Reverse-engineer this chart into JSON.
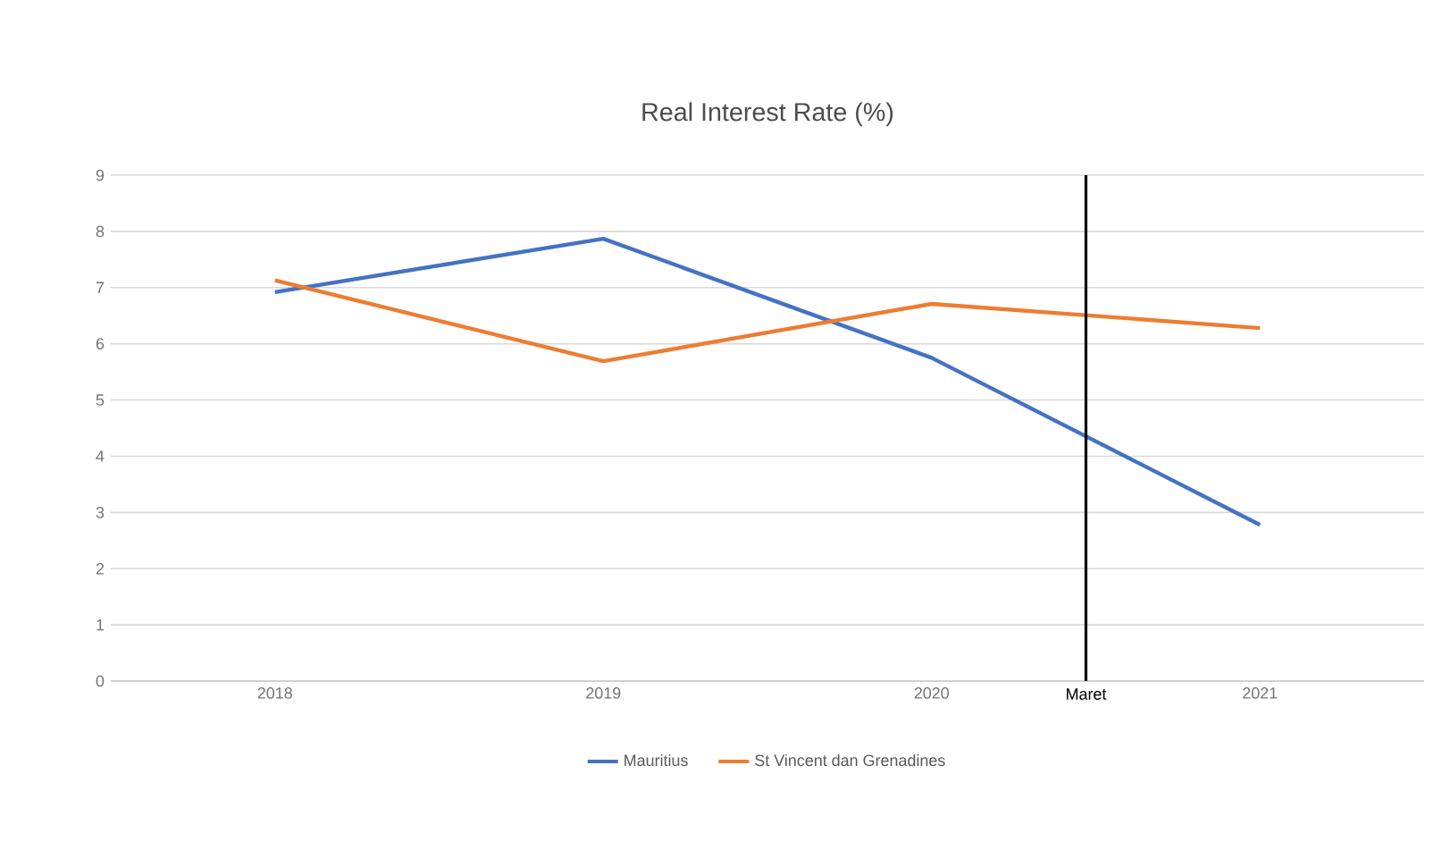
{
  "chart_data": {
    "type": "line",
    "title": "Real Interest Rate (%)",
    "x": [
      2018,
      2019,
      2020,
      2021
    ],
    "xlim": [
      2017.5,
      2021.5
    ],
    "xticks": [
      2018,
      2019,
      2020,
      2021
    ],
    "ylim": [
      0,
      9
    ],
    "yticks": [
      0,
      1,
      2,
      3,
      4,
      5,
      6,
      7,
      8,
      9
    ],
    "grid": "y",
    "legend": "bottom",
    "marker": "none",
    "line_style": "solid",
    "series": [
      {
        "name": "Mauritius",
        "color": "#4472c4",
        "values": [
          6.92,
          7.87,
          5.75,
          2.78
        ]
      },
      {
        "name": "St Vincent dan Grenadines",
        "color": "#ed7d31",
        "values": [
          7.13,
          5.69,
          6.71,
          6.28
        ]
      }
    ],
    "ref_lines": [
      {
        "axis": "x",
        "value": 2020.47,
        "label": "Maret",
        "color": "#000000"
      }
    ]
  }
}
